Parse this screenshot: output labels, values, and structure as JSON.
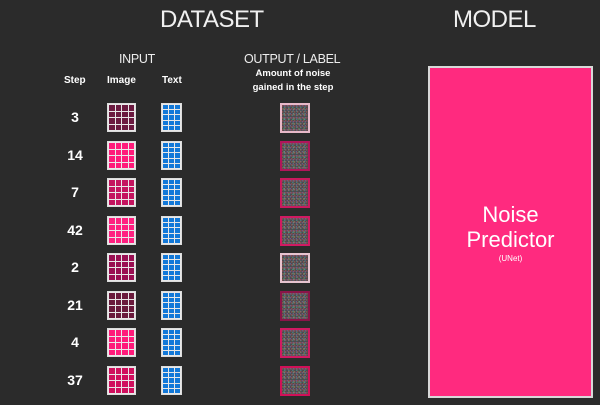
{
  "headers": {
    "dataset": "DATASET",
    "model": "MODEL",
    "input": "INPUT",
    "output": "OUTPUT  / LABEL",
    "output_desc_line1": "Amount of noise",
    "output_desc_line2": "gained in the step"
  },
  "columns": {
    "step": "Step",
    "image": "Image",
    "text": "Text"
  },
  "rows": [
    {
      "step": "3",
      "image_color": "#6b1a40",
      "noise_border": "#e7b8c8"
    },
    {
      "step": "14",
      "image_color": "#ff1a7a",
      "noise_border": "#b0155a"
    },
    {
      "step": "7",
      "image_color": "#c4145f",
      "noise_border": "#c81a5e"
    },
    {
      "step": "42",
      "image_color": "#ff2080",
      "noise_border": "#d01a62"
    },
    {
      "step": "2",
      "image_color": "#9a0e52",
      "noise_border": "#e6c3cf"
    },
    {
      "step": "21",
      "image_color": "#6a1a3c",
      "noise_border": "#8a1448"
    },
    {
      "step": "4",
      "image_color": "#ff1a7a",
      "noise_border": "#d01a62"
    },
    {
      "step": "37",
      "image_color": "#d0105e",
      "noise_border": "#d01058"
    }
  ],
  "text_color": "#1278d8",
  "model": {
    "name_line1": "Noise",
    "name_line2": "Predictor",
    "arch": "(UNet)",
    "color": "#ff2a7f"
  }
}
